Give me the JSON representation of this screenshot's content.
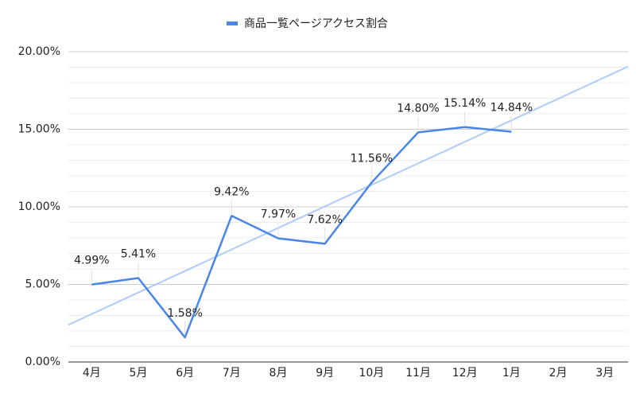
{
  "chart_data": {
    "type": "line",
    "categories": [
      "4月",
      "5月",
      "6月",
      "7月",
      "8月",
      "9月",
      "10月",
      "11月",
      "12月",
      "1月",
      "2月",
      "3月"
    ],
    "series": [
      {
        "name": "商品一覧ページアクセス割合",
        "color": "#4a86e8",
        "values": [
          4.99,
          5.41,
          1.58,
          9.42,
          7.97,
          7.62,
          11.56,
          14.8,
          15.14,
          14.84,
          null,
          null
        ],
        "value_labels": [
          "4.99%",
          "5.41%",
          "1.58%",
          "9.42%",
          "7.97%",
          "7.62%",
          "11.56%",
          "14.80%",
          "15.14%",
          "14.84%",
          null,
          null
        ]
      }
    ],
    "trendline": true,
    "trendline_color": "#aecbfa",
    "ylim": [
      0,
      20
    ],
    "yticks": [
      {
        "value": 0,
        "label": "0.00%"
      },
      {
        "value": 5,
        "label": "5.00%"
      },
      {
        "value": 10,
        "label": "10.00%"
      },
      {
        "value": 15,
        "label": "15.00%"
      },
      {
        "value": 20,
        "label": "20.00%"
      }
    ],
    "yminorticks": [
      1,
      2,
      3,
      4,
      6,
      7,
      8,
      9,
      11,
      12,
      13,
      14,
      16,
      17,
      18,
      19
    ],
    "grid": true,
    "legend": "top"
  }
}
